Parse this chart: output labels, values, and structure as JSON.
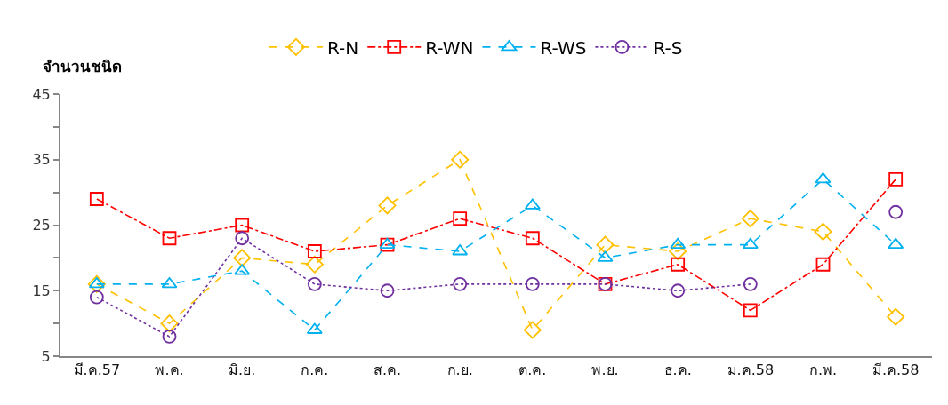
{
  "chart_data": {
    "type": "line",
    "ylabel": "จำนวนชนิด",
    "categories": [
      "มี.ค.57",
      "พ.ค.",
      "มิ.ย.",
      "ก.ค.",
      "ส.ค.",
      "ก.ย.",
      "ต.ค.",
      "พ.ย.",
      "ธ.ค.",
      "ม.ค.58",
      "ก.พ.",
      "มี.ค.58"
    ],
    "series": [
      {
        "name": "R-N",
        "color": "#ffc000",
        "marker": "diamond",
        "line_style": "dashed",
        "values": [
          16,
          10,
          20,
          19,
          28,
          35,
          9,
          22,
          21,
          26,
          24,
          11
        ]
      },
      {
        "name": "R-WN",
        "color": "#ff0000",
        "marker": "square",
        "line_style": "dashdot",
        "values": [
          29,
          23,
          25,
          21,
          22,
          26,
          23,
          16,
          19,
          12,
          19,
          32
        ]
      },
      {
        "name": "R-WS",
        "color": "#00b0f0",
        "marker": "triangle",
        "line_style": "dashed",
        "values": [
          16,
          16,
          18,
          9,
          22,
          21,
          28,
          20,
          22,
          22,
          32,
          22
        ]
      },
      {
        "name": "R-S",
        "color": "#7030a0",
        "marker": "circle",
        "line_style": "dotted",
        "values": [
          14,
          8,
          23,
          16,
          15,
          16,
          16,
          16,
          15,
          16,
          null,
          27
        ]
      }
    ],
    "ylim": [
      5,
      45
    ],
    "yticks": [
      5,
      {
        "value": 10,
        "label": null
      },
      15,
      {
        "value": 20,
        "label": null
      },
      25,
      {
        "value": 30,
        "label": null
      },
      35,
      {
        "value": 40,
        "label": null
      },
      45
    ],
    "grid": false,
    "legend": "top"
  }
}
